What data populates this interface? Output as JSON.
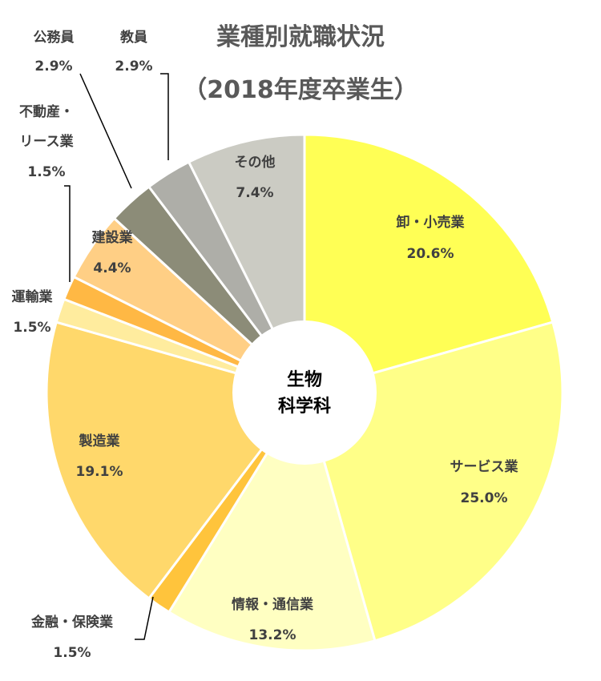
{
  "chart_data": {
    "type": "pie",
    "title_line1": "業種別就職状況",
    "title_line2": "（2018年度卒業生）",
    "center_label_line1": "生物",
    "center_label_line2": "科学科",
    "unit": "%",
    "slices": [
      {
        "name": "卸・小売業",
        "value": 20.6,
        "label": "20.6%",
        "color": "#FFFF55"
      },
      {
        "name": "サービス業",
        "value": 25.0,
        "label": "25.0%",
        "color": "#FFFF88"
      },
      {
        "name": "情報・通信業",
        "value": 13.2,
        "label": "13.2%",
        "color": "#FFFFC2"
      },
      {
        "name": "金融・保険業",
        "value": 1.5,
        "label": "1.5%",
        "color": "#FFC43C"
      },
      {
        "name": "製造業",
        "value": 19.1,
        "label": "19.1%",
        "color": "#FFD86B"
      },
      {
        "name": "運輸業",
        "value": 1.5,
        "label": "1.5%",
        "color": "#FFEC9E"
      },
      {
        "name": "不動産・リース業",
        "value": 1.5,
        "label": "1.5%",
        "color": "#FFB844"
      },
      {
        "name": "建設業",
        "value": 4.4,
        "label": "4.4%",
        "color": "#FFCF85"
      },
      {
        "name": "公務員",
        "value": 2.9,
        "label": "2.9%",
        "color": "#8C8C78"
      },
      {
        "name": "教員",
        "value": 2.9,
        "label": "2.9%",
        "color": "#AEAEA8"
      },
      {
        "name": "その他",
        "value": 7.4,
        "label": "7.4%",
        "color": "#CBCBC3"
      }
    ]
  }
}
